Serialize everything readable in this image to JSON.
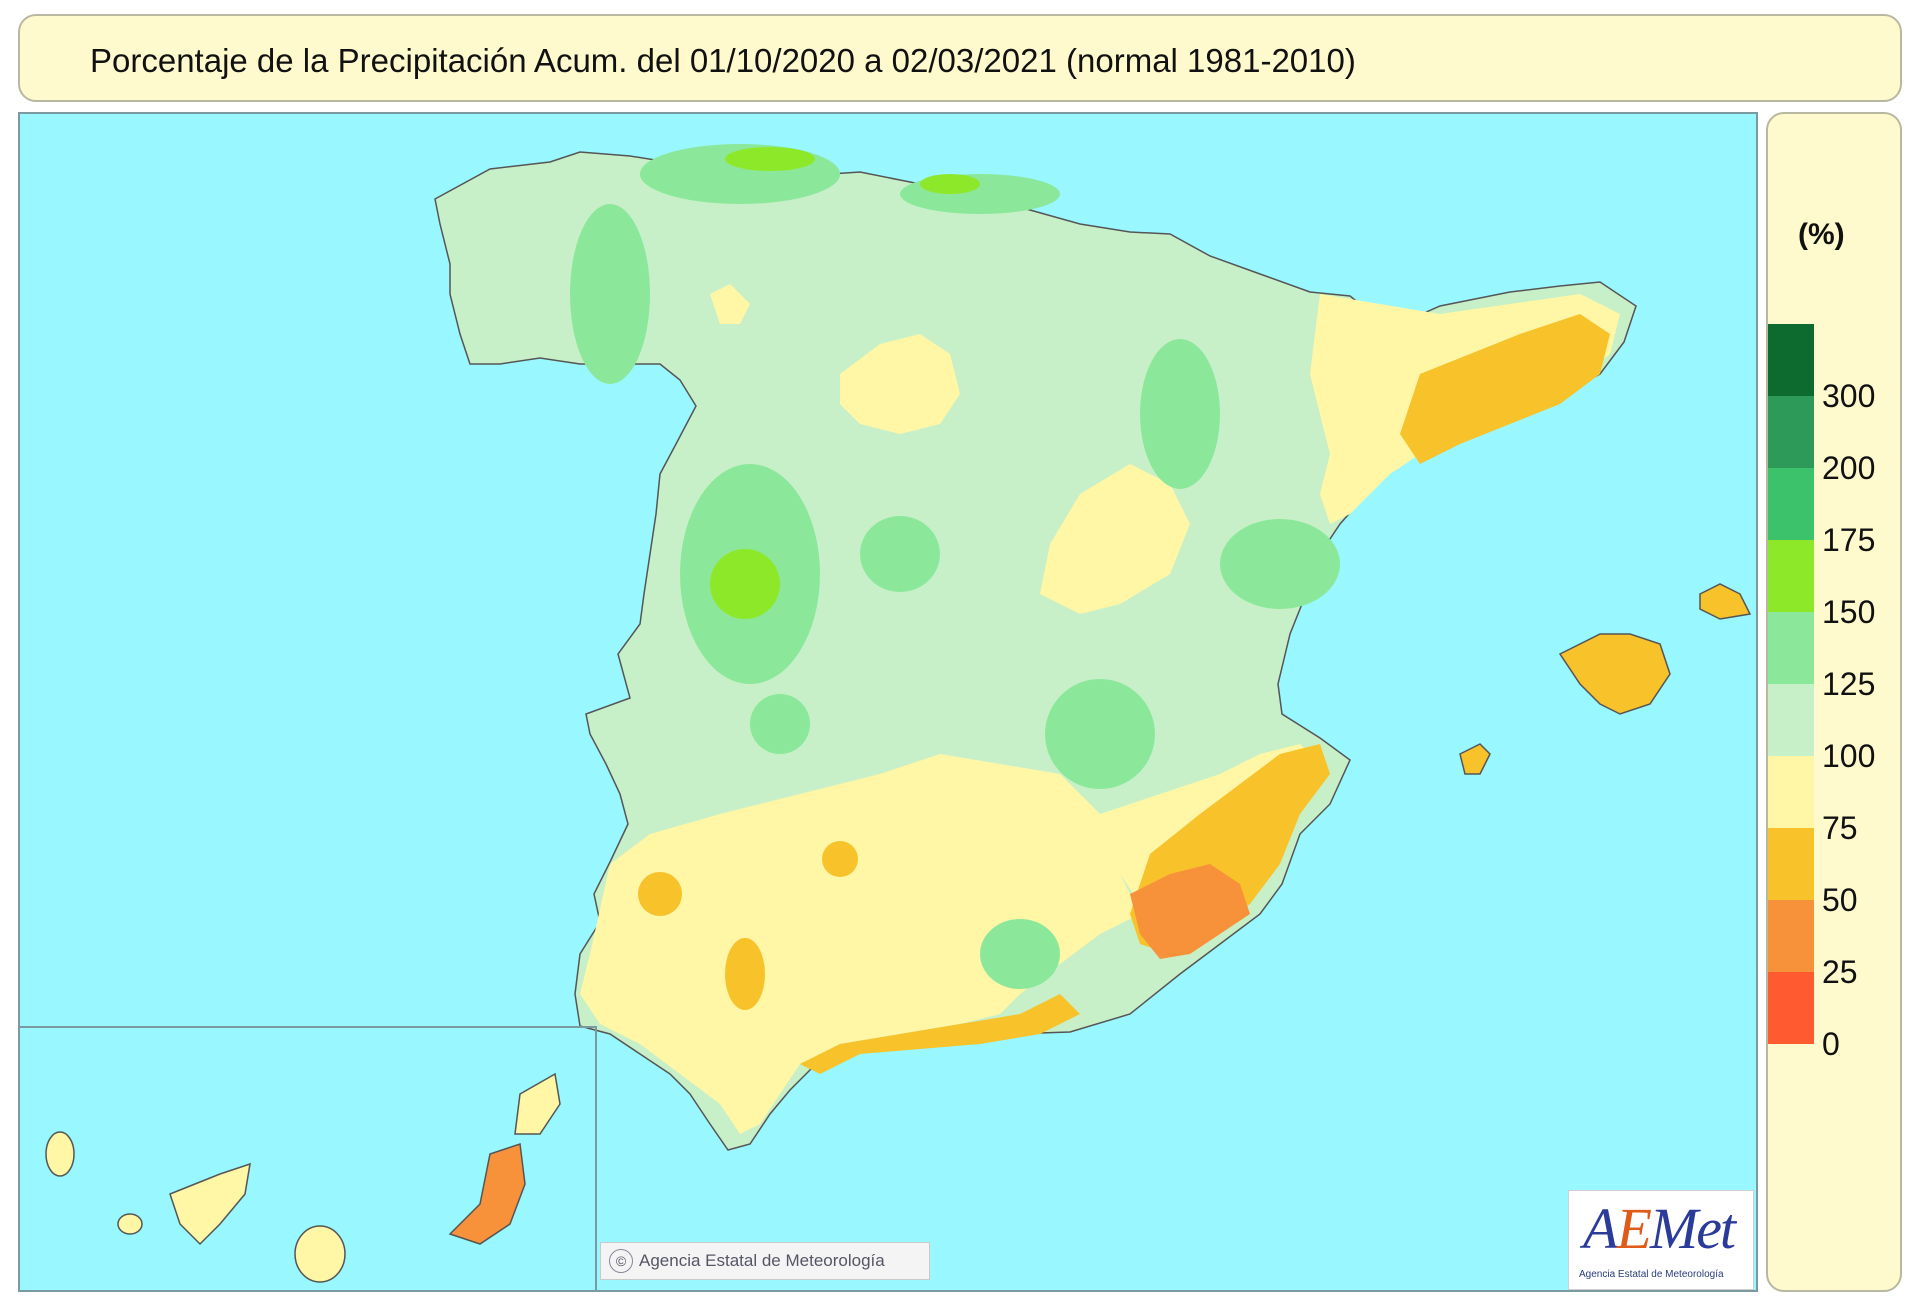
{
  "title": "Porcentaje de la Precipitación Acum. del 01/10/2020 a  02/03/2021  (normal 1981-2010)",
  "legend": {
    "unit": "(%)",
    "items": [
      {
        "label": "300",
        "color": "#0d6b30"
      },
      {
        "label": "200",
        "color": "#2e9a5a"
      },
      {
        "label": "175",
        "color": "#3cc26a"
      },
      {
        "label": "150",
        "color": "#8ee82a"
      },
      {
        "label": "125",
        "color": "#8be89a"
      },
      {
        "label": "100",
        "color": "#c8f0c8"
      },
      {
        "label": "75",
        "color": "#fff6a6"
      },
      {
        "label": "50",
        "color": "#f7c22a"
      },
      {
        "label": "25",
        "color": "#f8923a"
      },
      {
        "label": "0",
        "color": "#ff5a30"
      }
    ]
  },
  "credit": {
    "symbol": "©",
    "text": "Agencia Estatal de Meteorología"
  },
  "logo": {
    "text_a": "A",
    "text_e": "E",
    "text_met": "Met",
    "subtitle": "Agencia Estatal de Meteorología"
  },
  "colors": {
    "sea": "#99f7ff",
    "panel": "#fffacd"
  }
}
